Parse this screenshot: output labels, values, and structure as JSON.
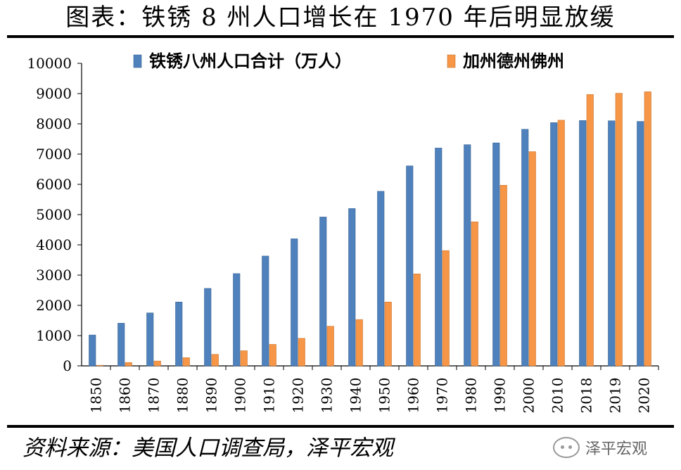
{
  "header": {
    "title": "图表：铁锈 8 州人口增长在 1970 年后明显放缓"
  },
  "footer": {
    "source": "资料来源：美国人口调查局，泽平宏观",
    "watermark": "泽平宏观"
  },
  "colors": {
    "series1": "#4f81bd",
    "series2": "#f79646"
  },
  "chart_data": {
    "type": "bar",
    "title": "",
    "xlabel": "",
    "ylabel": "",
    "ylim": [
      0,
      10000
    ],
    "yticks": [
      0,
      1000,
      2000,
      3000,
      4000,
      5000,
      6000,
      7000,
      8000,
      9000,
      10000
    ],
    "legend_position": "top",
    "grid": false,
    "categories": [
      "1850",
      "1860",
      "1870",
      "1880",
      "1890",
      "1900",
      "1910",
      "1920",
      "1930",
      "1940",
      "1950",
      "1960",
      "1970",
      "1980",
      "1990",
      "2000",
      "2010",
      "2018",
      "2019",
      "2020"
    ],
    "series": [
      {
        "name": "铁锈八州人口合计（万人）",
        "values": [
          1020,
          1410,
          1750,
          2110,
          2560,
          3050,
          3630,
          4200,
          4920,
          5200,
          5770,
          6610,
          7200,
          7310,
          7370,
          7820,
          8040,
          8110,
          8100,
          8080
        ]
      },
      {
        "name": "加州德州佛州",
        "values": [
          20,
          110,
          160,
          270,
          380,
          500,
          710,
          910,
          1310,
          1530,
          2110,
          3040,
          3810,
          4760,
          5970,
          7080,
          8120,
          8970,
          9010,
          9060
        ]
      }
    ]
  }
}
